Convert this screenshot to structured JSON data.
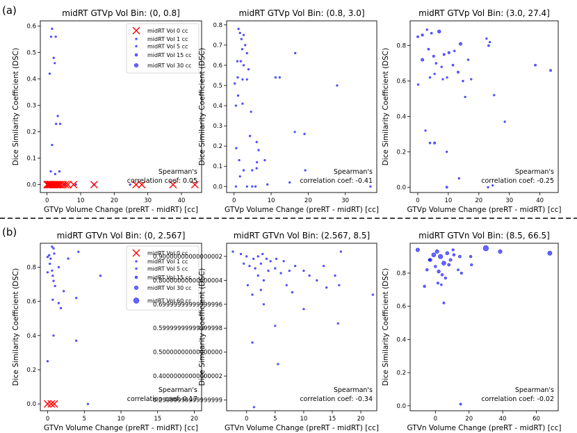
{
  "figure": {
    "row_labels": [
      "(a)",
      "(b)"
    ],
    "colors": {
      "point": "#0000ff",
      "zero_marker": "#ff0000",
      "axis": "#000000",
      "separator": "#000000"
    }
  },
  "chart_data": [
    {
      "type": "scatter",
      "row": 0,
      "col": 0,
      "title": "midRT GTVp Vol Bin: (0, 0.8]",
      "xlabel": "GTVp Volume Change (preRT - midRT) [cc]",
      "ylabel": "Dice Similarity Coefficient (DSC)",
      "xlim": [
        -2,
        46
      ],
      "ylim": [
        -0.03,
        0.62
      ],
      "xticks": [
        0,
        10,
        20,
        30,
        40
      ],
      "yticks": [
        0.0,
        0.1,
        0.2,
        0.3,
        0.4,
        0.5,
        0.6
      ],
      "annotation": [
        "Spearman's",
        "correlation coef: 0.05"
      ],
      "legend": {
        "position": "upper right",
        "entries": [
          {
            "label": "midRT Vol 0 cc",
            "marker": "x"
          },
          {
            "label": "midRT Vol 1 cc",
            "size": 1
          },
          {
            "label": "midRT Vol 5 cc",
            "size": 5
          },
          {
            "label": "midRT Vol 15 cc",
            "size": 15
          },
          {
            "label": "midRT Vol 30 cc",
            "size": 30
          }
        ]
      },
      "points": [
        [
          1.5,
          0.59,
          0.5
        ],
        [
          2.6,
          0.56,
          0.4
        ],
        [
          1.2,
          0.56,
          0.3
        ],
        [
          2.0,
          0.48,
          0.3
        ],
        [
          2.3,
          0.46,
          0.4
        ],
        [
          0.8,
          0.42,
          0.3
        ],
        [
          3.2,
          0.26,
          0.3
        ],
        [
          2.7,
          0.23,
          0.4
        ],
        [
          3.9,
          0.23,
          0.5
        ],
        [
          1.5,
          0.15,
          0.3
        ],
        [
          3.7,
          0.05,
          0.3
        ],
        [
          1.1,
          0.05,
          0.4
        ],
        [
          2.4,
          0.04,
          0.3
        ],
        [
          0.6,
          0.0,
          0.3
        ],
        [
          8.6,
          0.0,
          0.4
        ],
        [
          24.7,
          0.0,
          0.3
        ],
        [
          3.4,
          0.0,
          0.3
        ],
        [
          14.0,
          0.0,
          0.3
        ],
        [
          0.2,
          0.01,
          0.2
        ],
        [
          5.3,
          0.0,
          0.3
        ]
      ],
      "zero_points": [
        [
          0,
          0
        ],
        [
          0.3,
          0
        ],
        [
          0.6,
          0
        ],
        [
          0.9,
          0
        ],
        [
          1.2,
          0
        ],
        [
          1.6,
          0
        ],
        [
          2.0,
          0
        ],
        [
          2.4,
          0
        ],
        [
          2.8,
          0
        ],
        [
          3.2,
          0
        ],
        [
          3.6,
          0
        ],
        [
          4.1,
          0
        ],
        [
          4.8,
          0
        ],
        [
          5.5,
          0
        ],
        [
          6.2,
          0
        ],
        [
          7.9,
          0
        ],
        [
          14.0,
          0
        ],
        [
          26.5,
          0
        ],
        [
          28.2,
          0
        ],
        [
          37.5,
          0
        ],
        [
          44.0,
          0
        ]
      ]
    },
    {
      "type": "scatter",
      "row": 0,
      "col": 1,
      "title": "midRT GTVp Vol Bin: (0.8, 3.0]",
      "xlabel": "GTVp Volume Change (preRT - midRT) [cc]",
      "ylabel": "Dice Similarity Coefficient (DSC)",
      "xlim": [
        -2,
        38.5
      ],
      "ylim": [
        -0.03,
        0.82
      ],
      "xticks": [
        0,
        10,
        20,
        30
      ],
      "yticks": [
        0.0,
        0.1,
        0.2,
        0.3,
        0.4,
        0.5,
        0.6,
        0.7,
        0.8
      ],
      "annotation": [
        "Spearman's",
        "correlation coef: -0.41"
      ],
      "points": [
        [
          1.2,
          0.78,
          1.8
        ],
        [
          1.6,
          0.76,
          1.4
        ],
        [
          2.6,
          0.75,
          2.2
        ],
        [
          2.0,
          0.73,
          1.6
        ],
        [
          3.0,
          0.7,
          2.5
        ],
        [
          2.2,
          0.68,
          1.2
        ],
        [
          3.5,
          0.66,
          1.8
        ],
        [
          0.9,
          0.62,
          1.4
        ],
        [
          1.8,
          0.62,
          2.6
        ],
        [
          2.6,
          0.6,
          1.6
        ],
        [
          3.9,
          0.58,
          2.2
        ],
        [
          1.0,
          0.54,
          1.4
        ],
        [
          2.3,
          0.53,
          2.0
        ],
        [
          3.5,
          0.53,
          1.6
        ],
        [
          11.2,
          0.54,
          1.3
        ],
        [
          12.3,
          0.54,
          1.2
        ],
        [
          16.5,
          0.66,
          1.6
        ],
        [
          27.8,
          0.5,
          1.3
        ],
        [
          0.2,
          0.51,
          1.6
        ],
        [
          1.1,
          0.45,
          1.2
        ],
        [
          2.3,
          0.41,
          2.2
        ],
        [
          0.5,
          0.4,
          1.4
        ],
        [
          4.6,
          0.37,
          1.3
        ],
        [
          16.4,
          0.27,
          1.3
        ],
        [
          19.0,
          0.26,
          1.2
        ],
        [
          4.3,
          0.25,
          1.6
        ],
        [
          6.1,
          0.22,
          1.5
        ],
        [
          6.6,
          0.18,
          2.0
        ],
        [
          0.6,
          0.19,
          1.2
        ],
        [
          1.4,
          0.13,
          1.4
        ],
        [
          8.3,
          0.13,
          1.6
        ],
        [
          6.2,
          0.12,
          1.4
        ],
        [
          2.6,
          0.08,
          2.2
        ],
        [
          4.9,
          0.08,
          1.6
        ],
        [
          6.1,
          0.09,
          1.4
        ],
        [
          1.6,
          0.05,
          1.2
        ],
        [
          15.0,
          0.02,
          1.4
        ],
        [
          19.2,
          0.08,
          1.3
        ],
        [
          3.5,
          0.0,
          1.8
        ],
        [
          4.9,
          0.0,
          1.4
        ],
        [
          5.8,
          0.0,
          1.6
        ],
        [
          9.0,
          0.01,
          1.3
        ],
        [
          0.5,
          0.0,
          1.2
        ],
        [
          36.8,
          0.0,
          1.3
        ]
      ]
    },
    {
      "type": "scatter",
      "row": 0,
      "col": 2,
      "title": "midRT GTVp Vol Bin: (3.0, 27.4]",
      "xlabel": "GTVp Volume Change (preRT - midRT) [cc]",
      "ylabel": "Dice Similarity Coefficient (DSC)",
      "xlim": [
        -2.5,
        46
      ],
      "ylim": [
        -0.03,
        0.94
      ],
      "xticks": [
        0,
        10,
        20,
        30,
        40
      ],
      "yticks": [
        0.0,
        0.2,
        0.4,
        0.6,
        0.8
      ],
      "annotation": [
        "Spearman's",
        "correlation coef: -0.25"
      ],
      "points": [
        [
          0.0,
          0.85,
          10
        ],
        [
          1.5,
          0.86,
          13
        ],
        [
          3.0,
          0.89,
          7
        ],
        [
          4.5,
          0.87,
          9
        ],
        [
          7.0,
          0.88,
          22
        ],
        [
          1.5,
          0.72,
          19
        ],
        [
          3.5,
          0.78,
          9
        ],
        [
          5.2,
          0.74,
          11
        ],
        [
          6.0,
          0.7,
          8
        ],
        [
          7.8,
          0.68,
          7
        ],
        [
          8.6,
          0.75,
          11
        ],
        [
          10.2,
          0.76,
          13
        ],
        [
          12.0,
          0.77,
          8
        ],
        [
          14.0,
          0.81,
          19
        ],
        [
          11.5,
          0.69,
          9
        ],
        [
          13.2,
          0.65,
          11
        ],
        [
          14.8,
          0.6,
          8
        ],
        [
          16.5,
          0.72,
          7
        ],
        [
          5.5,
          0.64,
          5
        ],
        [
          4.0,
          0.62,
          7
        ],
        [
          8.2,
          0.61,
          5
        ],
        [
          9.6,
          0.62,
          6
        ],
        [
          0.1,
          0.58,
          6
        ],
        [
          15.5,
          0.51,
          6
        ],
        [
          22.5,
          0.84,
          7
        ],
        [
          23.2,
          0.8,
          9
        ],
        [
          23.6,
          0.82,
          6
        ],
        [
          25.0,
          0.52,
          5
        ],
        [
          38.5,
          0.69,
          9
        ],
        [
          43.5,
          0.66,
          11
        ],
        [
          2.5,
          0.32,
          5
        ],
        [
          4.0,
          0.25,
          8
        ],
        [
          5.5,
          0.25,
          11
        ],
        [
          9.5,
          0.2,
          6
        ],
        [
          13.5,
          0.05,
          4
        ],
        [
          9.5,
          0.0,
          10
        ],
        [
          24.5,
          0.01,
          6
        ],
        [
          23.0,
          0.0,
          4
        ],
        [
          28.5,
          0.37,
          6
        ],
        [
          17.5,
          0.61,
          5
        ]
      ]
    },
    {
      "type": "scatter",
      "row": 1,
      "col": 0,
      "title": "midRT GTVn Vol Bin: (0, 2.567]",
      "xlabel": "GTVn Volume Change (preRT - midRT) [cc]",
      "ylabel": "Dice Similarity Coefficient (DSC)",
      "xlim": [
        -1,
        21
      ],
      "ylim": [
        -0.04,
        0.94
      ],
      "xticks": [
        0,
        5,
        10,
        15,
        20
      ],
      "yticks": [
        0.0,
        0.2,
        0.4,
        0.6,
        0.8
      ],
      "annotation": [
        "Spearman's",
        "correlation coef: 0.17"
      ],
      "legend": {
        "position": "upper right",
        "entries": [
          {
            "label": "midRT Vol 0 cc",
            "marker": "x"
          },
          {
            "label": "midRT Vol 1 cc",
            "size": 1
          },
          {
            "label": "midRT Vol 5 cc",
            "size": 5
          },
          {
            "label": "midRT Vol 15 cc",
            "size": 15
          },
          {
            "label": "midRT Vol 30 cc",
            "size": 30
          },
          {
            "label": "midRT Vol 60 cc",
            "size": 60
          }
        ]
      },
      "points": [
        [
          0.6,
          0.92,
          1.4
        ],
        [
          0.8,
          0.91,
          1.1
        ],
        [
          0.2,
          0.87,
          1.6
        ],
        [
          0.0,
          0.86,
          1.3
        ],
        [
          0.4,
          0.85,
          0.8
        ],
        [
          0.9,
          0.88,
          1.3
        ],
        [
          2.8,
          0.85,
          1.0
        ],
        [
          4.2,
          0.89,
          1.4
        ],
        [
          0.3,
          0.82,
          0.9
        ],
        [
          1.5,
          0.8,
          1.2
        ],
        [
          0.6,
          0.78,
          1.3
        ],
        [
          0.0,
          0.77,
          1.0
        ],
        [
          0.7,
          0.75,
          1.4
        ],
        [
          0.8,
          0.72,
          1.6
        ],
        [
          1.0,
          0.69,
          1.2
        ],
        [
          2.2,
          0.66,
          1.4
        ],
        [
          3.9,
          0.62,
          1.2
        ],
        [
          0.7,
          0.61,
          0.9
        ],
        [
          1.5,
          0.59,
          1.1
        ],
        [
          1.8,
          0.56,
          1.0
        ],
        [
          7.2,
          0.75,
          0.8
        ],
        [
          0.8,
          0.4,
          1.1
        ],
        [
          3.9,
          0.37,
          0.8
        ],
        [
          0.0,
          0.25,
          0.7
        ],
        [
          5.5,
          0.0,
          1.2
        ]
      ],
      "zero_points": [
        [
          0.0,
          0
        ],
        [
          0.5,
          0
        ],
        [
          0.9,
          0
        ]
      ]
    },
    {
      "type": "scatter",
      "row": 1,
      "col": 1,
      "title": "midRT GTVn Vol Bin: (2.567, 8.5]",
      "xlabel": "GTVn Volume Change (preRT - midRT) [cc]",
      "ylabel": "Dice Similarity Coefficient (DSC)",
      "xlim": [
        -3.5,
        22.8
      ],
      "ylim": [
        0.255,
        0.955
      ],
      "xticks": [
        0,
        5,
        10,
        15,
        20
      ],
      "yticks": [
        0.3,
        0.4,
        0.5,
        0.6,
        0.7,
        0.8,
        0.9
      ],
      "annotation": [
        "Spearman's",
        "correlation coef: -0.34"
      ],
      "points": [
        [
          -2.4,
          0.92,
          2.8
        ],
        [
          -1.0,
          0.91,
          3.5
        ],
        [
          0.0,
          0.9,
          4.6
        ],
        [
          1.2,
          0.89,
          3.0
        ],
        [
          2.0,
          0.9,
          4.0
        ],
        [
          2.8,
          0.91,
          3.5
        ],
        [
          3.5,
          0.89,
          6.0
        ],
        [
          4.2,
          0.88,
          3.0
        ],
        [
          5.2,
          0.89,
          5.0
        ],
        [
          6.5,
          0.88,
          3.0
        ],
        [
          -0.5,
          0.87,
          3.0
        ],
        [
          0.5,
          0.86,
          5.0
        ],
        [
          1.5,
          0.85,
          4.0
        ],
        [
          2.5,
          0.87,
          3.5
        ],
        [
          3.8,
          0.84,
          4.5
        ],
        [
          5.0,
          0.85,
          3.5
        ],
        [
          6.0,
          0.83,
          5.0
        ],
        [
          7.5,
          0.84,
          3.0
        ],
        [
          8.5,
          0.86,
          3.5
        ],
        [
          10.0,
          0.84,
          3.0
        ],
        [
          11.0,
          0.82,
          4.0
        ],
        [
          12.3,
          0.8,
          3.5
        ],
        [
          13.5,
          0.86,
          4.5
        ],
        [
          14.0,
          0.77,
          3.0
        ],
        [
          16.5,
          0.92,
          3.0
        ],
        [
          15.5,
          0.82,
          3.5
        ],
        [
          16.2,
          0.78,
          3.0
        ],
        [
          16.0,
          0.62,
          2.8
        ],
        [
          22.1,
          0.74,
          2.8
        ],
        [
          2.0,
          0.82,
          3.0
        ],
        [
          3.0,
          0.8,
          3.5
        ],
        [
          0.2,
          0.78,
          3.5
        ],
        [
          2.5,
          0.76,
          3.2
        ],
        [
          1.0,
          0.74,
          3.0
        ],
        [
          7.0,
          0.78,
          3.5
        ],
        [
          8.0,
          0.75,
          4.0
        ],
        [
          10.0,
          0.68,
          3.0
        ],
        [
          3.0,
          0.7,
          4.0
        ],
        [
          5.0,
          0.61,
          3.0
        ],
        [
          5.5,
          0.45,
          3.0
        ],
        [
          1.0,
          0.54,
          3.0
        ],
        [
          1.3,
          0.27,
          3.0
        ]
      ]
    },
    {
      "type": "scatter",
      "row": 1,
      "col": 2,
      "title": "midRT GTVn Vol Bin: (8.5, 66.5]",
      "xlabel": "GTVn Volume Change (preRT - midRT) [cc]",
      "ylabel": "Dice Similarity Coefficient (DSC)",
      "xlim": [
        -15,
        73
      ],
      "ylim": [
        -0.03,
        0.98
      ],
      "xticks": [
        0,
        20,
        40,
        60
      ],
      "yticks": [
        0.0,
        0.2,
        0.4,
        0.6,
        0.8
      ],
      "annotation": [
        "Spearman's",
        "correlation coef: -0.02"
      ],
      "points": [
        [
          -10.5,
          0.94,
          28
        ],
        [
          -6.5,
          0.72,
          14
        ],
        [
          -5.0,
          0.82,
          14
        ],
        [
          -3.0,
          0.88,
          22
        ],
        [
          -1.0,
          0.91,
          35
        ],
        [
          1.0,
          0.93,
          28
        ],
        [
          3.0,
          0.9,
          40
        ],
        [
          5.0,
          0.86,
          35
        ],
        [
          7.0,
          0.92,
          24
        ],
        [
          9.0,
          0.88,
          18
        ],
        [
          11.0,
          0.91,
          14
        ],
        [
          2.0,
          0.81,
          22
        ],
        [
          4.0,
          0.79,
          14
        ],
        [
          6.0,
          0.77,
          12
        ],
        [
          8.0,
          0.85,
          17
        ],
        [
          0.0,
          0.84,
          14
        ],
        [
          1.5,
          0.74,
          11
        ],
        [
          3.5,
          0.73,
          8
        ],
        [
          5.0,
          0.62,
          10
        ],
        [
          14.5,
          0.9,
          16
        ],
        [
          15.5,
          0.8,
          12
        ],
        [
          21.0,
          0.9,
          14
        ],
        [
          21.5,
          0.85,
          12
        ],
        [
          30.0,
          0.95,
          58
        ],
        [
          38.5,
          0.93,
          30
        ],
        [
          68.0,
          0.92,
          38
        ],
        [
          -3.5,
          0.88,
          14
        ],
        [
          10.5,
          0.94,
          12
        ],
        [
          13.5,
          0.82,
          9
        ],
        [
          15.0,
          0.01,
          10
        ]
      ]
    }
  ]
}
